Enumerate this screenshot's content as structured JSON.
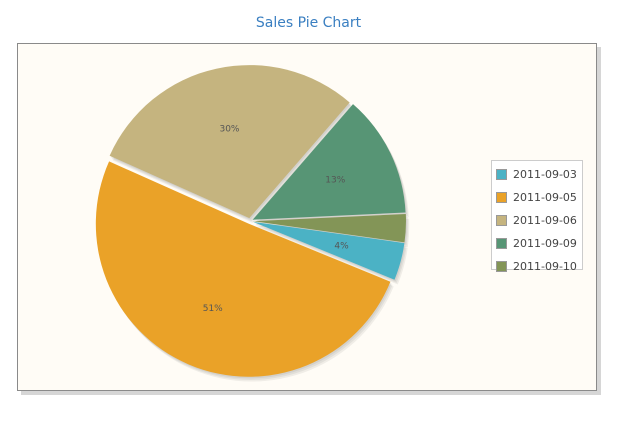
{
  "chart_data": {
    "type": "pie",
    "title": "Sales Pie Chart",
    "slices": [
      {
        "label": "2011-09-03",
        "value": 4,
        "pct_label": "4%",
        "color": "#4bb2c5",
        "explode": true
      },
      {
        "label": "2011-09-05",
        "value": 51,
        "pct_label": "51%",
        "color": "#eaa228",
        "explode": true
      },
      {
        "label": "2011-09-06",
        "value": 30,
        "pct_label": "30%",
        "color": "#c5b47f",
        "explode": true
      },
      {
        "label": "2011-09-09",
        "value": 13,
        "pct_label": "13%",
        "color": "#579575",
        "explode": true
      },
      {
        "label": "2011-09-10",
        "value": 3,
        "pct_label": "",
        "color": "#839557",
        "explode": true
      }
    ],
    "legend_position": "right"
  }
}
